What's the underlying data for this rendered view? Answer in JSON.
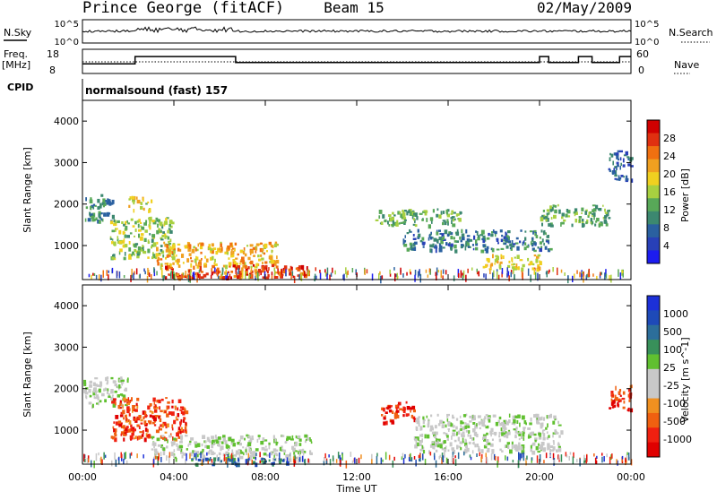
{
  "header": {
    "title": "Prince George (fitACF)",
    "beam": "Beam 15",
    "date": "02/May/2009"
  },
  "top_panels": {
    "nsky_label": "N.Sky",
    "nsky_ticks": [
      "10^5",
      "10^0"
    ],
    "nsearch_label": "N.Search",
    "nsearch_ticks": [
      "10^5",
      "10^0"
    ],
    "freq_label_1": "Freq.",
    "freq_label_2": "[MHz]",
    "freq_ticks": [
      "18",
      "8"
    ],
    "nave_label": "Nave",
    "nave_ticks": [
      "60",
      "0"
    ],
    "cpid_label": "CPID",
    "cpid_value": "normalsound (fast) 157"
  },
  "colors": {
    "power_scale": [
      "#1c1cf0",
      "#2840b8",
      "#2a60a0",
      "#3c8870",
      "#58a858",
      "#a8d040",
      "#f0d020",
      "#f0a020",
      "#f07010",
      "#e03010",
      "#d00000"
    ],
    "velocity_scale": [
      "#e00000",
      "#f02010",
      "#f06010",
      "#f09020",
      "#c8c8c8",
      "#c8c8c8",
      "#60c030",
      "#38905a",
      "#2c6e9a",
      "#1e4ab8",
      "#1c30d8"
    ]
  },
  "chart_data": [
    {
      "type": "heatmap",
      "title": "",
      "xlabel": "",
      "ylabel": "Slant Range [km]",
      "xlim": [
        "00:00",
        "24:00"
      ],
      "ylim": [
        180,
        4500
      ],
      "y_ticks": [
        "1000",
        "2000",
        "3000",
        "4000"
      ],
      "colorbar": {
        "label": "Power [dB]",
        "ticks": [
          "4",
          "8",
          "12",
          "16",
          "20",
          "24",
          "28"
        ],
        "range": [
          0,
          30
        ]
      },
      "regions": [
        {
          "t_start": 0.0,
          "t_end": 1.3,
          "range_start": 1600,
          "range_end": 2250,
          "value": 9
        },
        {
          "t_start": 1.2,
          "t_end": 4.0,
          "range_start": 700,
          "range_end": 1700,
          "value": 14
        },
        {
          "t_start": 2.0,
          "t_end": 3.0,
          "range_start": 1850,
          "range_end": 2200,
          "value": 16
        },
        {
          "t_start": 3.2,
          "t_end": 8.5,
          "range_start": 500,
          "range_end": 1100,
          "value": 20
        },
        {
          "t_start": 3.5,
          "t_end": 10.0,
          "range_start": 250,
          "range_end": 550,
          "value": 26
        },
        {
          "t_start": 12.8,
          "t_end": 16.5,
          "range_start": 1500,
          "range_end": 1900,
          "value": 12
        },
        {
          "t_start": 14.0,
          "t_end": 20.5,
          "range_start": 900,
          "range_end": 1400,
          "value": 8
        },
        {
          "t_start": 17.5,
          "t_end": 20.0,
          "range_start": 450,
          "range_end": 800,
          "value": 18
        },
        {
          "t_start": 20.0,
          "t_end": 23.0,
          "range_start": 1500,
          "range_end": 2000,
          "value": 12
        },
        {
          "t_start": 23.0,
          "t_end": 24.0,
          "range_start": 2600,
          "range_end": 3300,
          "value": 6
        }
      ]
    },
    {
      "type": "heatmap",
      "title": "",
      "xlabel": "Time UT",
      "ylabel": "Slant Range [km]",
      "xlim": [
        "00:00",
        "24:00"
      ],
      "ylim": [
        180,
        4500
      ],
      "x_ticks": [
        "00:00",
        "04:00",
        "08:00",
        "12:00",
        "16:00",
        "20:00",
        "00:00"
      ],
      "y_ticks": [
        "1000",
        "2000",
        "3000",
        "4000"
      ],
      "colorbar": {
        "label": "Velocity [m s^-1]",
        "ticks": [
          "1000",
          "500",
          "100",
          "25",
          "-25",
          "-100",
          "-500",
          "-1000"
        ],
        "range": [
          -1000,
          1000
        ]
      },
      "regions": [
        {
          "t_start": 0.0,
          "t_end": 2.0,
          "range_start": 1600,
          "range_end": 2300,
          "value": 0
        },
        {
          "t_start": 1.2,
          "t_end": 4.5,
          "range_start": 800,
          "range_end": 1800,
          "value": -150
        },
        {
          "t_start": 3.0,
          "t_end": 10.0,
          "range_start": 300,
          "range_end": 900,
          "value": 0
        },
        {
          "t_start": 4.5,
          "t_end": 9.0,
          "range_start": 180,
          "range_end": 350,
          "value": 60
        },
        {
          "t_start": 13.0,
          "t_end": 14.5,
          "range_start": 1200,
          "range_end": 1700,
          "value": -250
        },
        {
          "t_start": 14.5,
          "t_end": 21.0,
          "range_start": 500,
          "range_end": 1400,
          "value": 0
        },
        {
          "t_start": 23.0,
          "t_end": 24.0,
          "range_start": 1500,
          "range_end": 2100,
          "value": -200
        }
      ]
    },
    {
      "type": "line",
      "title": "",
      "xlabel": "",
      "ylabel": "Freq. [MHz]",
      "xlim": [
        "00:00",
        "24:00"
      ],
      "ylim": [
        8,
        18
      ],
      "series": [
        {
          "name": "Freq.",
          "x": [
            0,
            1.5,
            2.3,
            5.3,
            6.7,
            10,
            12.5,
            13.5,
            14.5,
            16.5,
            17.5,
            19.7,
            20,
            20.4,
            21.7,
            22.3,
            23.5,
            24
          ],
          "values": [
            12,
            12,
            15,
            15,
            12.5,
            12.5,
            12.5,
            12.5,
            12.5,
            12.5,
            12.5,
            12.5,
            15,
            12.5,
            15,
            12.5,
            15,
            15
          ]
        }
      ]
    }
  ],
  "x_axis": {
    "label": "Time UT",
    "ticks": [
      "00:00",
      "04:00",
      "08:00",
      "12:00",
      "16:00",
      "20:00",
      "00:00"
    ]
  }
}
